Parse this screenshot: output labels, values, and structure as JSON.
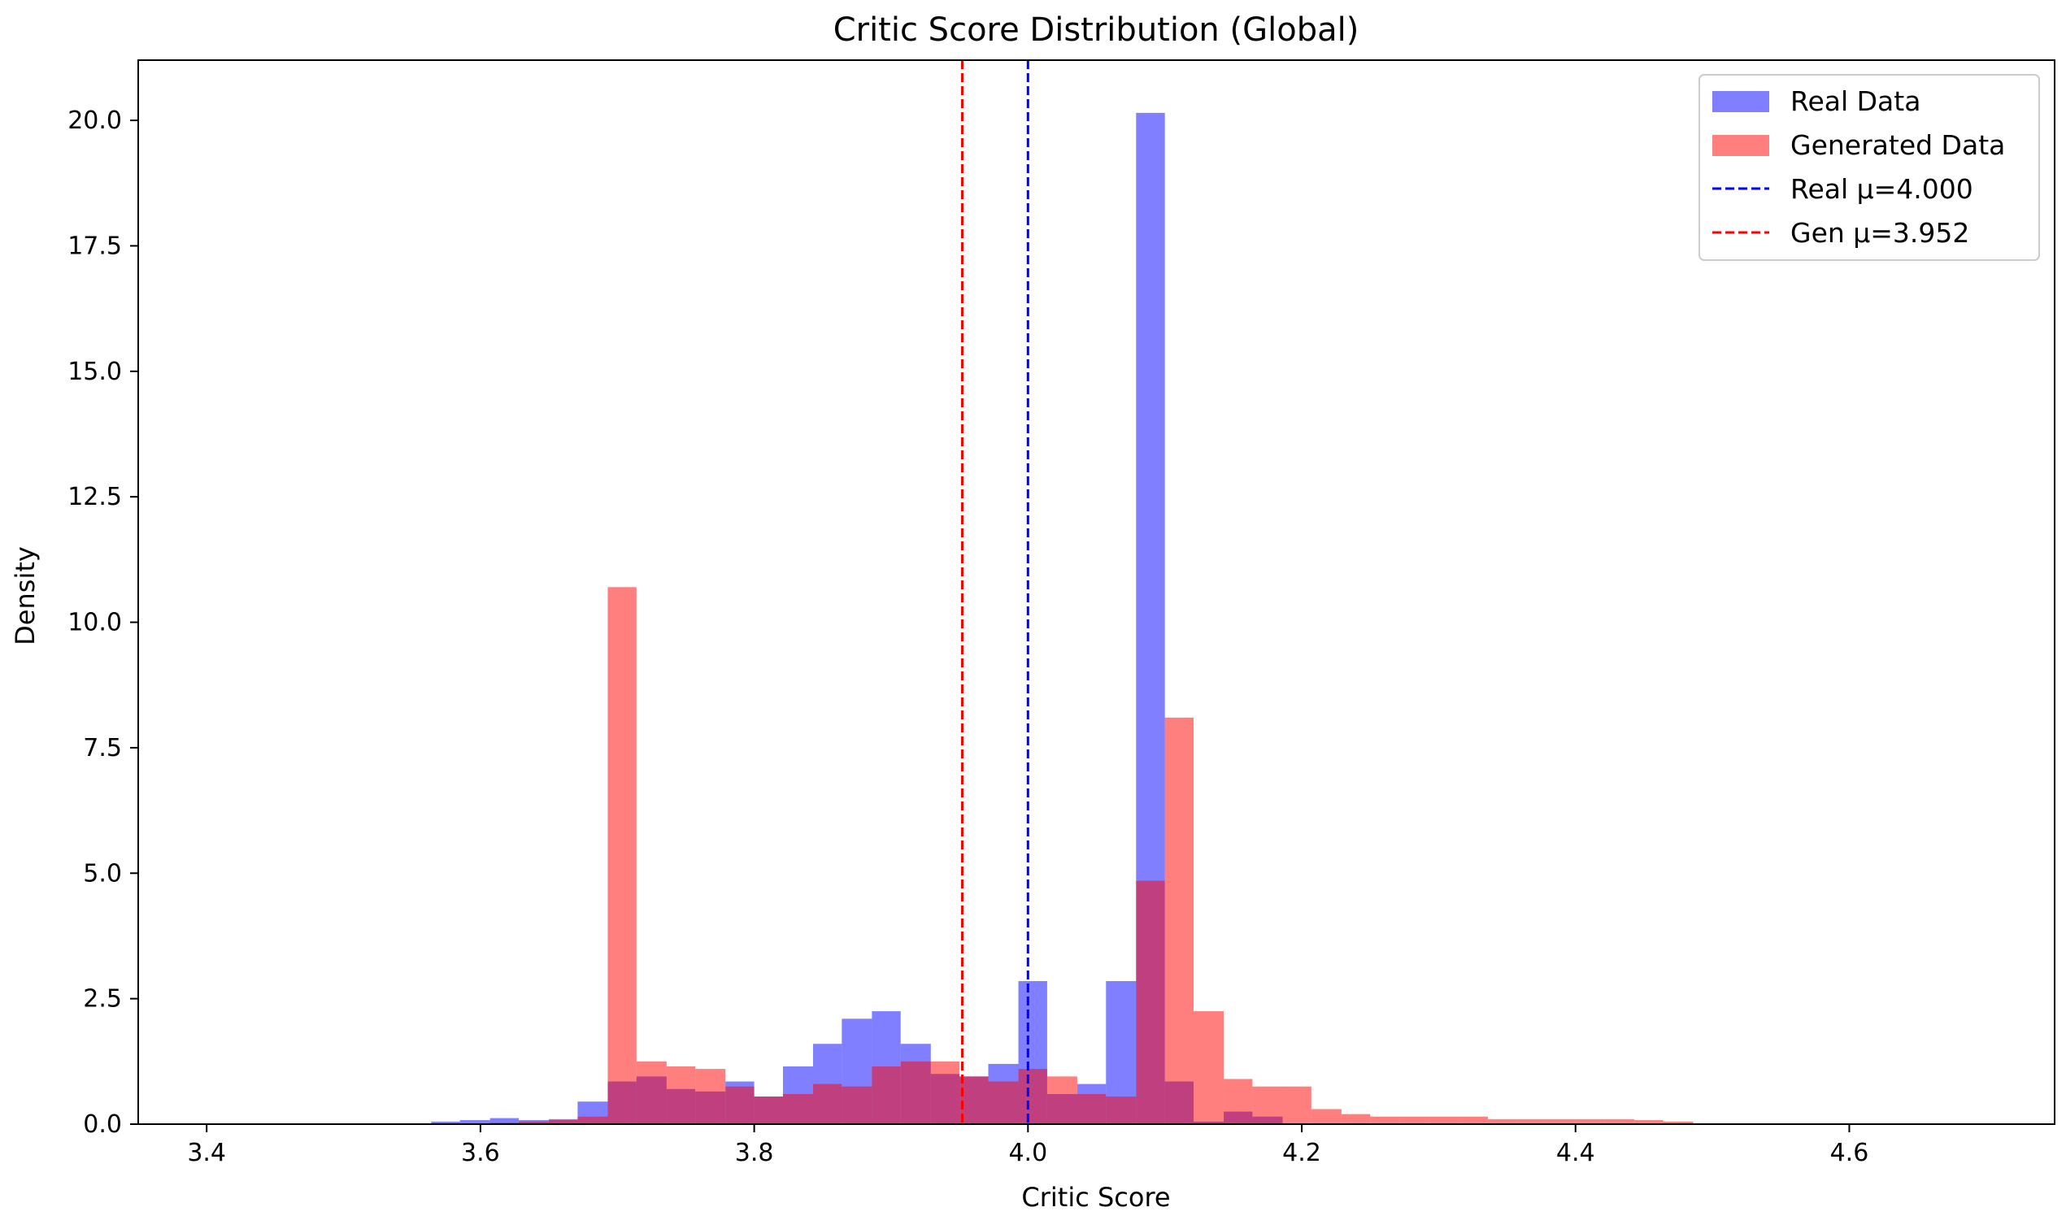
{
  "chart_data": {
    "type": "bar",
    "subtype": "overlaid-histogram",
    "title": "Critic Score Distribution (Global)",
    "xlabel": "Critic Score",
    "ylabel": "Density",
    "xlim": [
      3.35,
      4.75
    ],
    "ylim": [
      0,
      21.2
    ],
    "x_ticks": [
      3.4,
      3.6,
      3.8,
      4.0,
      4.2,
      4.4,
      4.6
    ],
    "x_tick_labels": [
      "3.4",
      "3.6",
      "3.8",
      "4.0",
      "4.2",
      "4.4",
      "4.6"
    ],
    "y_ticks": [
      0,
      2.5,
      5,
      7.5,
      10,
      12.5,
      15,
      17.5,
      20
    ],
    "y_tick_labels": [
      "0.0",
      "2.5",
      "5.0",
      "7.5",
      "10.0",
      "12.5",
      "15.0",
      "17.5",
      "20.0"
    ],
    "grid": false,
    "legend_position": "top-right",
    "series": [
      {
        "name": "Real Data",
        "color": "#0000ff",
        "opacity": 0.5,
        "bins": [
          [
            3.564,
            3.585,
            0.05
          ],
          [
            3.585,
            3.607,
            0.08
          ],
          [
            3.607,
            3.628,
            0.12
          ],
          [
            3.628,
            3.65,
            0.08
          ],
          [
            3.65,
            3.671,
            0.1
          ],
          [
            3.671,
            3.693,
            0.45
          ],
          [
            3.693,
            3.714,
            0.85
          ],
          [
            3.714,
            3.736,
            0.95
          ],
          [
            3.736,
            3.757,
            0.7
          ],
          [
            3.757,
            3.779,
            0.65
          ],
          [
            3.779,
            3.8,
            0.85
          ],
          [
            3.8,
            3.821,
            0.55
          ],
          [
            3.821,
            3.843,
            1.15
          ],
          [
            3.843,
            3.864,
            1.6
          ],
          [
            3.864,
            3.886,
            2.1
          ],
          [
            3.886,
            3.907,
            2.25
          ],
          [
            3.907,
            3.929,
            1.6
          ],
          [
            3.929,
            3.95,
            1.0
          ],
          [
            3.95,
            3.971,
            0.95
          ],
          [
            3.971,
            3.993,
            1.2
          ],
          [
            3.993,
            4.014,
            2.85
          ],
          [
            4.014,
            4.036,
            0.6
          ],
          [
            4.036,
            4.057,
            0.8
          ],
          [
            4.057,
            4.079,
            2.85
          ],
          [
            4.079,
            4.1,
            20.15
          ],
          [
            4.1,
            4.121,
            0.85
          ],
          [
            4.121,
            4.143,
            0.05
          ],
          [
            4.143,
            4.164,
            0.25
          ],
          [
            4.164,
            4.186,
            0.15
          ]
        ]
      },
      {
        "name": "Generated Data",
        "color": "#ff0000",
        "opacity": 0.5,
        "bins": [
          [
            3.607,
            3.628,
            0.03
          ],
          [
            3.628,
            3.65,
            0.05
          ],
          [
            3.65,
            3.671,
            0.08
          ],
          [
            3.671,
            3.693,
            0.15
          ],
          [
            3.693,
            3.714,
            10.7
          ],
          [
            3.714,
            3.736,
            1.25
          ],
          [
            3.736,
            3.757,
            1.15
          ],
          [
            3.757,
            3.779,
            1.1
          ],
          [
            3.779,
            3.8,
            0.75
          ],
          [
            3.8,
            3.821,
            0.55
          ],
          [
            3.821,
            3.843,
            0.6
          ],
          [
            3.843,
            3.864,
            0.8
          ],
          [
            3.864,
            3.886,
            0.75
          ],
          [
            3.886,
            3.907,
            1.15
          ],
          [
            3.907,
            3.929,
            1.25
          ],
          [
            3.929,
            3.95,
            1.25
          ],
          [
            3.95,
            3.971,
            0.95
          ],
          [
            3.971,
            3.993,
            0.85
          ],
          [
            3.993,
            4.014,
            1.1
          ],
          [
            4.014,
            4.036,
            0.95
          ],
          [
            4.036,
            4.057,
            0.6
          ],
          [
            4.057,
            4.079,
            0.55
          ],
          [
            4.079,
            4.1,
            4.85
          ],
          [
            4.1,
            4.121,
            8.1
          ],
          [
            4.121,
            4.143,
            2.25
          ],
          [
            4.143,
            4.164,
            0.9
          ],
          [
            4.164,
            4.186,
            0.75
          ],
          [
            4.186,
            4.207,
            0.75
          ],
          [
            4.207,
            4.229,
            0.3
          ],
          [
            4.229,
            4.25,
            0.2
          ],
          [
            4.25,
            4.271,
            0.15
          ],
          [
            4.271,
            4.293,
            0.15
          ],
          [
            4.293,
            4.314,
            0.15
          ],
          [
            4.314,
            4.336,
            0.15
          ],
          [
            4.336,
            4.357,
            0.1
          ],
          [
            4.357,
            4.379,
            0.1
          ],
          [
            4.379,
            4.4,
            0.1
          ],
          [
            4.4,
            4.421,
            0.1
          ],
          [
            4.421,
            4.443,
            0.1
          ],
          [
            4.443,
            4.464,
            0.08
          ],
          [
            4.464,
            4.486,
            0.05
          ]
        ]
      }
    ],
    "reference_lines": [
      {
        "name": "Real μ=4.000",
        "x": 4.0,
        "color": "#0000ff",
        "style": "dashed"
      },
      {
        "name": "Gen μ=3.952",
        "x": 3.952,
        "color": "#ff0000",
        "style": "dashed"
      }
    ]
  }
}
